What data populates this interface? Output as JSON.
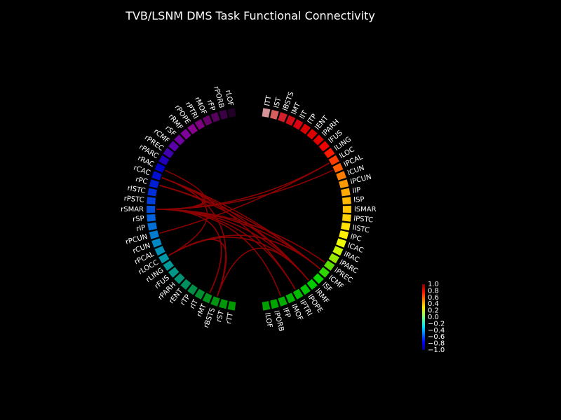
{
  "title": "TVB/LSNM DMS Task Functional Connectivity",
  "chart_data": {
    "type": "connectivity-circle",
    "nodes": [
      {
        "label": "lTT",
        "color": "#d69497"
      },
      {
        "label": "lST",
        "color": "#d95f5f"
      },
      {
        "label": "lBSTS",
        "color": "#d31f2b"
      },
      {
        "label": "lMT",
        "color": "#d40a14"
      },
      {
        "label": "lIT",
        "color": "#d90012"
      },
      {
        "label": "lTP",
        "color": "#d90000"
      },
      {
        "label": "lENT",
        "color": "#dc0000"
      },
      {
        "label": "lPARH",
        "color": "#e00000"
      },
      {
        "label": "lFUS",
        "color": "#ee0000"
      },
      {
        "label": "lLING",
        "color": "#fb1a00"
      },
      {
        "label": "lLOC",
        "color": "#ff3b00"
      },
      {
        "label": "lPCAL",
        "color": "#ff5d00"
      },
      {
        "label": "lCUN",
        "color": "#ff7d00"
      },
      {
        "label": "lPCUN",
        "color": "#ff9900"
      },
      {
        "label": "lIP",
        "color": "#ffaa00"
      },
      {
        "label": "lSP",
        "color": "#ffb700"
      },
      {
        "label": "lSMAR",
        "color": "#ffc300"
      },
      {
        "label": "lPSTC",
        "color": "#ffd100"
      },
      {
        "label": "lISTC",
        "color": "#ffe100"
      },
      {
        "label": "lPC",
        "color": "#fff000"
      },
      {
        "label": "lCAC",
        "color": "#eeff00"
      },
      {
        "label": "lRAC",
        "color": "#c8f500"
      },
      {
        "label": "lPARC",
        "color": "#96e600"
      },
      {
        "label": "lPREC",
        "color": "#5cdd00"
      },
      {
        "label": "lCMF",
        "color": "#2ed700"
      },
      {
        "label": "lSF",
        "color": "#08d400"
      },
      {
        "label": "lRMF",
        "color": "#00cc00"
      },
      {
        "label": "lPOPE",
        "color": "#00c400"
      },
      {
        "label": "lPTRI",
        "color": "#00bb00"
      },
      {
        "label": "lMOF",
        "color": "#00b300"
      },
      {
        "label": "lFP",
        "color": "#00ad00"
      },
      {
        "label": "lPORB",
        "color": "#00a600"
      },
      {
        "label": "lLOF",
        "color": "#00a000"
      },
      {
        "label": "rTT",
        "color": "#009a00"
      },
      {
        "label": "rST",
        "color": "#009808"
      },
      {
        "label": "rBSTS",
        "color": "#009412"
      },
      {
        "label": "rMT",
        "color": "#00921f"
      },
      {
        "label": "rIT",
        "color": "#009030"
      },
      {
        "label": "rTP",
        "color": "#008f46"
      },
      {
        "label": "rENT",
        "color": "#008f5e"
      },
      {
        "label": "rPARH",
        "color": "#009274"
      },
      {
        "label": "rFUS",
        "color": "#009788"
      },
      {
        "label": "rLING",
        "color": "#009a9a"
      },
      {
        "label": "rLOCC",
        "color": "#0098a8"
      },
      {
        "label": "rPCAL",
        "color": "#0090b6"
      },
      {
        "label": "rCUN",
        "color": "#0088c4"
      },
      {
        "label": "rPCUN",
        "color": "#007ccf"
      },
      {
        "label": "rIP",
        "color": "#0070d8"
      },
      {
        "label": "rSP",
        "color": "#0062dd"
      },
      {
        "label": "rSMAR",
        "color": "#0050dd"
      },
      {
        "label": "rPSTC",
        "color": "#003edd"
      },
      {
        "label": "rISTC",
        "color": "#002ed8"
      },
      {
        "label": "rPC",
        "color": "#001ed4"
      },
      {
        "label": "rCAC",
        "color": "#000ed0"
      },
      {
        "label": "rRAC",
        "color": "#0000cc"
      },
      {
        "label": "rPARC",
        "color": "#2200bb"
      },
      {
        "label": "rPREC",
        "color": "#4000b0"
      },
      {
        "label": "rCMF",
        "color": "#5a00a8"
      },
      {
        "label": "rSF",
        "color": "#7000a0"
      },
      {
        "label": "rRMF",
        "color": "#80009a"
      },
      {
        "label": "rPOPE",
        "color": "#880090"
      },
      {
        "label": "rPTRI",
        "color": "#7c0080"
      },
      {
        "label": "rMOF",
        "color": "#6a006c"
      },
      {
        "label": "rFP",
        "color": "#55005a"
      },
      {
        "label": "rPORB",
        "color": "#3c0044"
      },
      {
        "label": "rLOF",
        "color": "#200026"
      }
    ],
    "connection_color": "#8b0000",
    "connections": [
      [
        "lLOC",
        "rSMAR"
      ],
      [
        "lPCAL",
        "rSMAR"
      ],
      [
        "lCMF",
        "rSMAR"
      ],
      [
        "lCMF",
        "rCAC"
      ],
      [
        "lCMF",
        "rLOCC"
      ],
      [
        "lCMF",
        "rPC"
      ],
      [
        "lRMF",
        "rSMAR"
      ],
      [
        "lRMF",
        "rCAC"
      ],
      [
        "lRMF",
        "rLOCC"
      ],
      [
        "lRMF",
        "rPC"
      ],
      [
        "lPTRI",
        "rSMAR"
      ],
      [
        "lPTRI",
        "rCAC"
      ],
      [
        "lPREC",
        "rSMAR"
      ],
      [
        "rBSTS",
        "rCAC"
      ],
      [
        "rBSTS",
        "rLOCC"
      ],
      [
        "rBSTS",
        "lRMF"
      ],
      [
        "rCAC",
        "rSMAR"
      ],
      [
        "rCAC",
        "rLOCC"
      ],
      [
        "rSMAR",
        "rMT"
      ],
      [
        "rPC",
        "rSMAR"
      ],
      [
        "rRAC",
        "rSMAR"
      ],
      [
        "lFP",
        "rSMAR"
      ],
      [
        "lLOC",
        "rPCUN"
      ],
      [
        "rMT",
        "rSMAR"
      ]
    ],
    "colorbar": {
      "ticks": [
        "1.0",
        "0.8",
        "0.6",
        "0.4",
        "0.2",
        "0.0",
        "−0.2",
        "−0.4",
        "−0.6",
        "−0.8",
        "−1.0"
      ],
      "colormap": "jet",
      "range": [
        -1.0,
        1.0
      ]
    }
  }
}
